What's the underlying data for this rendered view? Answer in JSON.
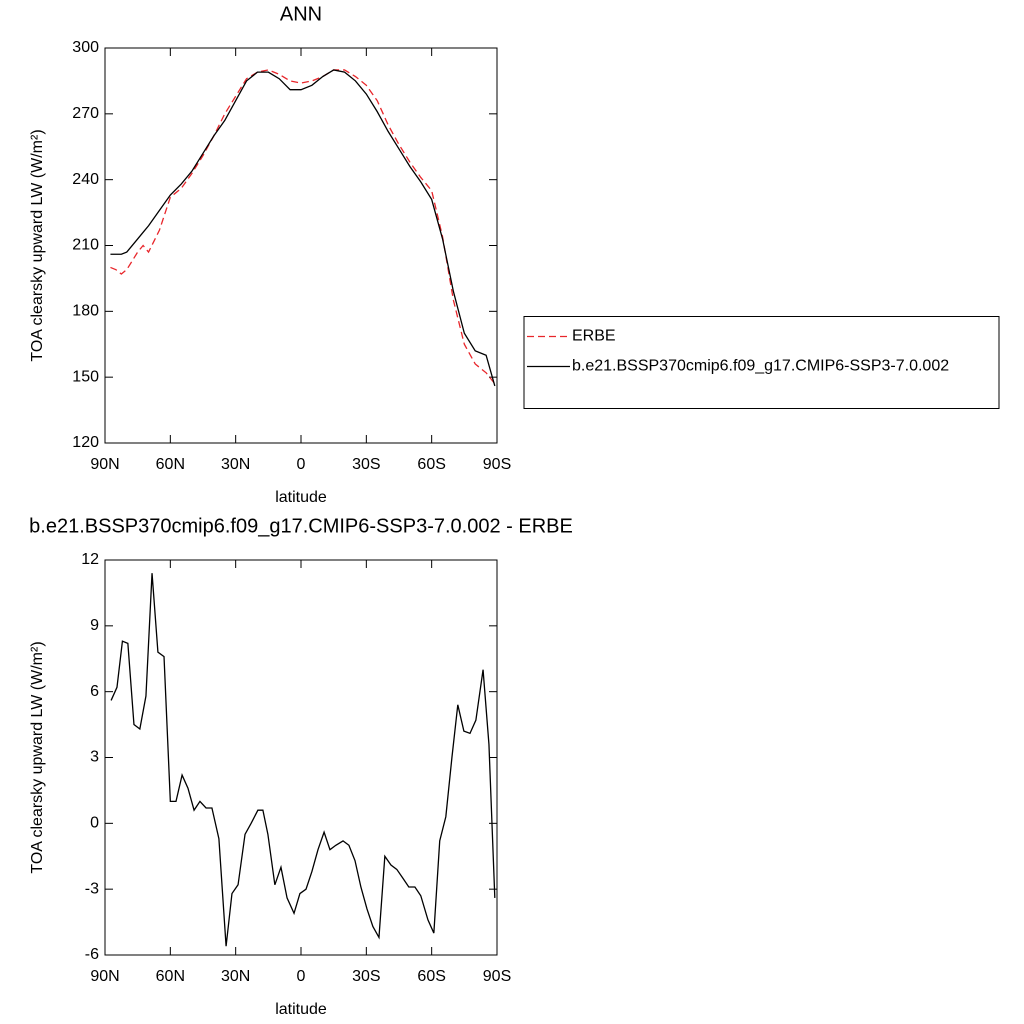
{
  "chart_data": [
    {
      "type": "line",
      "title": "ANN",
      "xlabel": "latitude",
      "ylabel": "TOA clearsky upward LW (W/m²)",
      "x": [
        87.5,
        85,
        82.5,
        80,
        75,
        72.5,
        70,
        65,
        60,
        55,
        50,
        45,
        40,
        35,
        30,
        25,
        20,
        15,
        10,
        5,
        0,
        -5,
        -10,
        -15,
        -20,
        -25,
        -30,
        -35,
        -40,
        -45,
        -50,
        -55,
        -60,
        -65,
        -70,
        -75,
        -80,
        -85,
        -89
      ],
      "series": [
        {
          "name": "ERBE",
          "color": "#e8262b",
          "linestyle": "dashed",
          "values": [
            200,
            199,
            197,
            199,
            207,
            210,
            207,
            217,
            232,
            236,
            243,
            251,
            260,
            270,
            278,
            286,
            289,
            290,
            288,
            285,
            284,
            285,
            287,
            290,
            290,
            287,
            283,
            276,
            265,
            256,
            248,
            241,
            235,
            214,
            185,
            165,
            156,
            152,
            147
          ]
        },
        {
          "name": "b.e21.BSSP370cmip6.f09_g17.CMIP6-SSP3-7.0.002",
          "color": "#000000",
          "linestyle": "solid",
          "values": [
            206,
            206,
            206,
            207,
            213,
            216,
            219,
            226,
            233,
            238,
            244,
            252,
            260,
            267,
            276,
            285,
            289,
            289,
            286,
            281,
            281,
            283,
            287,
            290,
            289,
            285,
            279,
            271,
            262,
            254,
            246,
            239,
            231,
            213,
            189,
            170,
            162,
            160,
            146
          ]
        }
      ],
      "xlim": [
        90,
        -90
      ],
      "xticks": [
        {
          "value": 90,
          "label": "90N"
        },
        {
          "value": 60,
          "label": "60N"
        },
        {
          "value": 30,
          "label": "30N"
        },
        0,
        {
          "value": -30,
          "label": "30S"
        },
        {
          "value": -60,
          "label": "60S"
        },
        {
          "value": -90,
          "label": "90S"
        }
      ],
      "ylim": [
        120,
        300
      ],
      "yticks": [
        120,
        150,
        180,
        210,
        240,
        270,
        300
      ],
      "legend": "right"
    },
    {
      "type": "line",
      "title": "b.e21.BSSP370cmip6.f09_g17.CMIP6-SSP3-7.0.002 - ERBE",
      "xlabel": "latitude",
      "ylabel": "TOA clearsky upward LW (W/m²)",
      "x": [
        87.2,
        84.5,
        82,
        79.5,
        76.7,
        74,
        71.2,
        68.4,
        65.7,
        62.9,
        60,
        57.4,
        54.6,
        51.9,
        49.1,
        46.4,
        43.6,
        40.9,
        37.7,
        34.4,
        31.7,
        28.9,
        25.7,
        22.9,
        19.8,
        17.5,
        15.2,
        12,
        9.2,
        6.4,
        3.2,
        0.5,
        -2.3,
        -5,
        -7.8,
        -10.6,
        -13.3,
        -16,
        -19.3,
        -22,
        -24.8,
        -27.5,
        -30.3,
        -33,
        -35.8,
        -38.5,
        -41.3,
        -44,
        -46.8,
        -49.5,
        -52.3,
        -55,
        -58.3,
        -61,
        -63.7,
        -66.5,
        -69.3,
        -72,
        -74.8,
        -77.6,
        -80.3,
        -83.6,
        -86.3,
        -89
      ],
      "series": [
        {
          "color": "#000000",
          "linestyle": "solid",
          "values": [
            5.6,
            6.2,
            8.3,
            8.2,
            4.5,
            4.3,
            5.8,
            11.4,
            7.8,
            7.6,
            1.0,
            1.0,
            2.2,
            1.6,
            0.6,
            1.0,
            0.7,
            0.7,
            -0.7,
            -5.6,
            -3.2,
            -2.8,
            -0.5,
            0.0,
            0.6,
            0.6,
            -0.5,
            -2.8,
            -2.0,
            -3.4,
            -4.1,
            -3.2,
            -3.0,
            -2.2,
            -1.2,
            -0.4,
            -1.2,
            -1.0,
            -0.8,
            -1.0,
            -1.7,
            -2.9,
            -3.9,
            -4.7,
            -5.2,
            -1.5,
            -1.9,
            -2.1,
            -2.5,
            -2.9,
            -2.9,
            -3.3,
            -4.4,
            -5.0,
            -0.8,
            0.3,
            3.0,
            5.4,
            4.2,
            4.1,
            4.7,
            7.0,
            3.6,
            -3.4
          ]
        }
      ],
      "xlim": [
        90,
        -90
      ],
      "xticks": [
        {
          "value": 90,
          "label": "90N"
        },
        {
          "value": 60,
          "label": "60N"
        },
        {
          "value": 30,
          "label": "30N"
        },
        0,
        {
          "value": -30,
          "label": "30S"
        },
        {
          "value": -60,
          "label": "60S"
        },
        {
          "value": -90,
          "label": "90S"
        }
      ],
      "ylim": [
        -6,
        12
      ],
      "yticks": [
        -6,
        -3,
        0,
        3,
        6,
        9,
        12
      ]
    }
  ]
}
